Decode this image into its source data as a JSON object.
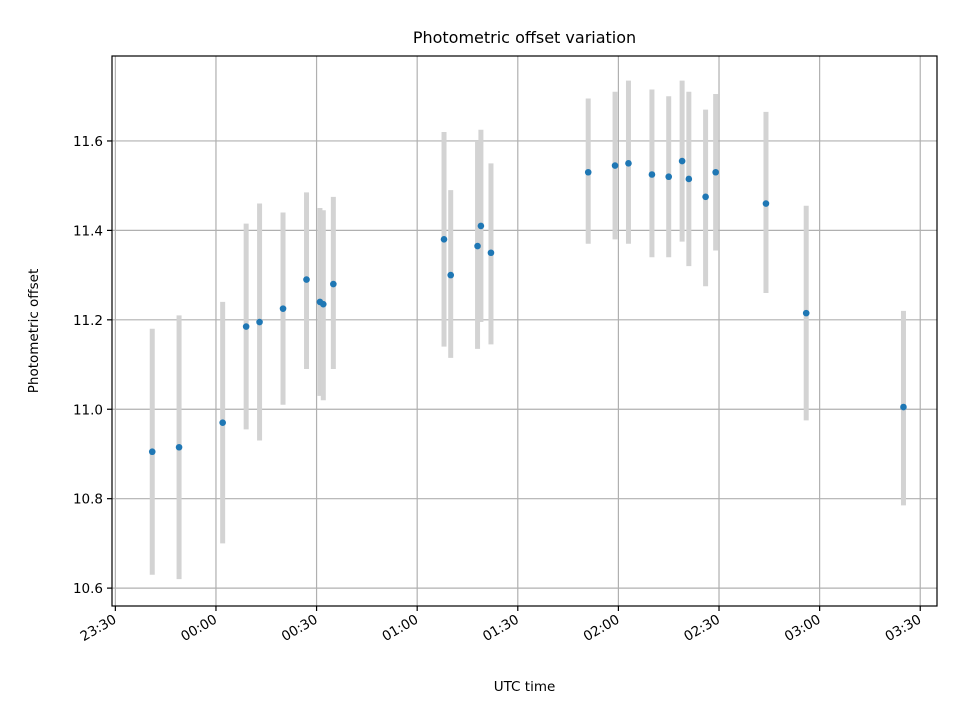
{
  "chart_data": {
    "type": "scatter",
    "title": "Photometric offset variation",
    "xlabel": "UTC time",
    "ylabel": "Photometric offset",
    "xlim": [
      "23:29",
      "03:35"
    ],
    "ylim": [
      10.56,
      11.79
    ],
    "x_ticks": [
      "23:30",
      "00:00",
      "00:30",
      "01:00",
      "01:30",
      "02:00",
      "02:30",
      "03:00",
      "03:30"
    ],
    "y_ticks": [
      "10.6",
      "10.8",
      "11.0",
      "11.2",
      "11.4",
      "11.6"
    ],
    "grid": true,
    "point_color": "#1f77b4",
    "errorbar_color": "#d3d3d3",
    "points": [
      {
        "t": "23:41",
        "y": 10.905,
        "lo": 10.63,
        "hi": 11.18
      },
      {
        "t": "23:49",
        "y": 10.915,
        "lo": 10.62,
        "hi": 11.21
      },
      {
        "t": "00:02",
        "y": 10.97,
        "lo": 10.7,
        "hi": 11.24
      },
      {
        "t": "00:09",
        "y": 11.185,
        "lo": 10.955,
        "hi": 11.415
      },
      {
        "t": "00:13",
        "y": 11.195,
        "lo": 10.93,
        "hi": 11.46
      },
      {
        "t": "00:20",
        "y": 11.225,
        "lo": 11.01,
        "hi": 11.44
      },
      {
        "t": "00:27",
        "y": 11.29,
        "lo": 11.09,
        "hi": 11.485
      },
      {
        "t": "00:31",
        "y": 11.24,
        "lo": 11.03,
        "hi": 11.45
      },
      {
        "t": "00:32",
        "y": 11.235,
        "lo": 11.02,
        "hi": 11.445
      },
      {
        "t": "00:35",
        "y": 11.28,
        "lo": 11.09,
        "hi": 11.475
      },
      {
        "t": "01:08",
        "y": 11.38,
        "lo": 11.14,
        "hi": 11.62
      },
      {
        "t": "01:10",
        "y": 11.3,
        "lo": 11.115,
        "hi": 11.49
      },
      {
        "t": "01:18",
        "y": 11.365,
        "lo": 11.135,
        "hi": 11.6
      },
      {
        "t": "01:19",
        "y": 11.41,
        "lo": 11.195,
        "hi": 11.625
      },
      {
        "t": "01:22",
        "y": 11.35,
        "lo": 11.145,
        "hi": 11.55
      },
      {
        "t": "01:51",
        "y": 11.53,
        "lo": 11.37,
        "hi": 11.695
      },
      {
        "t": "01:59",
        "y": 11.545,
        "lo": 11.38,
        "hi": 11.71
      },
      {
        "t": "02:03",
        "y": 11.55,
        "lo": 11.37,
        "hi": 11.735
      },
      {
        "t": "02:10",
        "y": 11.525,
        "lo": 11.34,
        "hi": 11.715
      },
      {
        "t": "02:15",
        "y": 11.52,
        "lo": 11.34,
        "hi": 11.7
      },
      {
        "t": "02:19",
        "y": 11.555,
        "lo": 11.375,
        "hi": 11.735
      },
      {
        "t": "02:21",
        "y": 11.515,
        "lo": 11.32,
        "hi": 11.71
      },
      {
        "t": "02:26",
        "y": 11.475,
        "lo": 11.275,
        "hi": 11.67
      },
      {
        "t": "02:29",
        "y": 11.53,
        "lo": 11.355,
        "hi": 11.705
      },
      {
        "t": "02:44",
        "y": 11.46,
        "lo": 11.26,
        "hi": 11.665
      },
      {
        "t": "02:56",
        "y": 11.215,
        "lo": 10.975,
        "hi": 11.455
      },
      {
        "t": "03:25",
        "y": 11.005,
        "lo": 10.785,
        "hi": 11.22
      }
    ]
  }
}
